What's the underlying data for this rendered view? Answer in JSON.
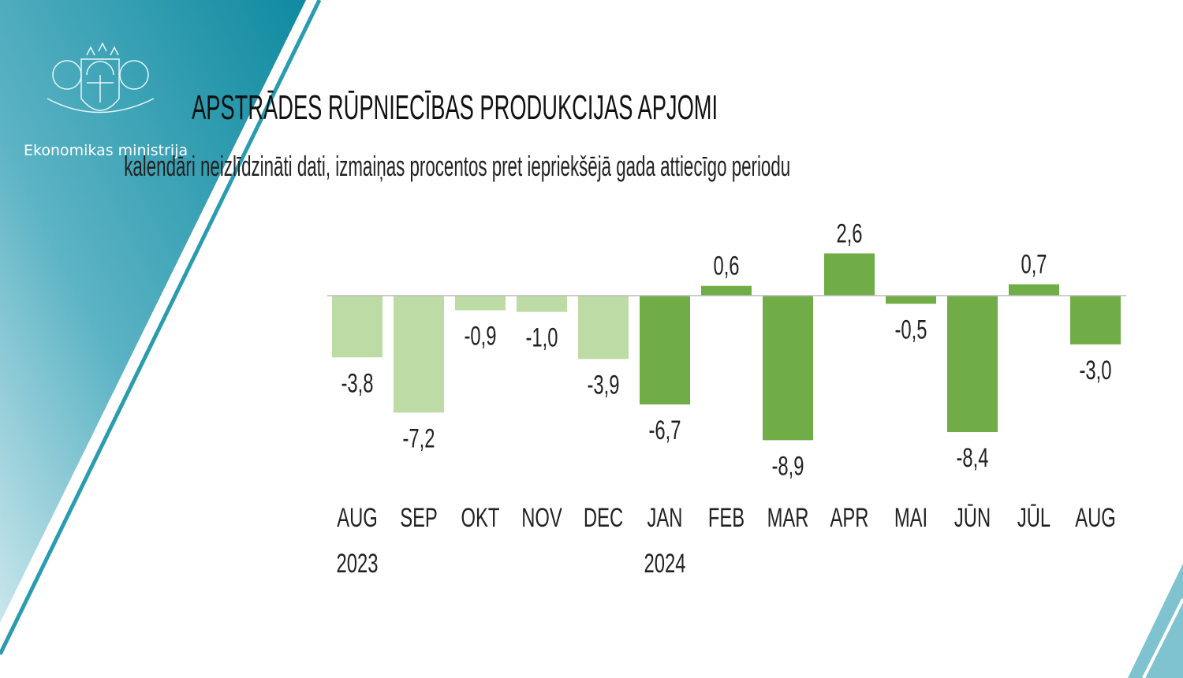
{
  "brand": {
    "name": "Ekonomikas ministrija",
    "logo": "Latvian coat of arms",
    "panel_color": "#1a8fa3"
  },
  "chart_data": {
    "type": "bar",
    "title": "APSTRĀDES RŪPNIECĪBAS PRODUKCIJAS APJOMI",
    "subtitle": "kalendāri neizlīdzināti dati, izmaiņas procentos pret iepriekšējā gada attiecīgo periodu",
    "categories": [
      "AUG",
      "SEP",
      "OKT",
      "NOV",
      "DEC",
      "JAN",
      "FEB",
      "MAR",
      "APR",
      "MAI",
      "JŪN",
      "JŪL",
      "AUG"
    ],
    "years": [
      "2023",
      "",
      "",
      "",
      "",
      "2024",
      "",
      "",
      "",
      "",
      "",
      "",
      ""
    ],
    "values": [
      -3.8,
      -7.2,
      -0.9,
      -1.0,
      -3.9,
      -6.7,
      0.6,
      -8.9,
      2.6,
      -0.5,
      -8.4,
      0.7,
      -3.0
    ],
    "labels": [
      "-3,8",
      "-7,2",
      "-0,9",
      "-1,0",
      "-3,9",
      "-6,7",
      "0,6",
      "-8,9",
      "2,6",
      "-0,5",
      "-8,4",
      "0,7",
      "-3,0"
    ],
    "colors": {
      "2023": "#bcdba5",
      "2024": "#70ad47"
    },
    "bar_year": [
      "2023",
      "2023",
      "2023",
      "2023",
      "2023",
      "2024",
      "2024",
      "2024",
      "2024",
      "2024",
      "2024",
      "2024",
      "2024"
    ],
    "grid": false,
    "legend": "none",
    "xlabel": "",
    "ylabel": ""
  }
}
